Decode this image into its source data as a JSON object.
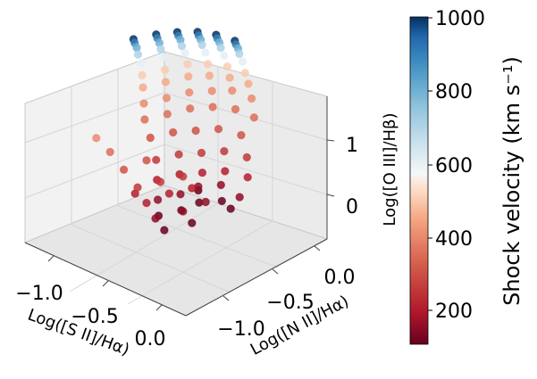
{
  "chart_data": {
    "type": "scatter",
    "projection": "3d",
    "x_axis": {
      "label": "Log([S II]/Hα)",
      "ticks": [
        -1.0,
        -0.5,
        0.0
      ],
      "tick_labels": [
        "−1.0",
        "−0.5",
        "0.0"
      ]
    },
    "y_axis": {
      "label": "Log([N II]/Hα)",
      "ticks": [
        -1.0,
        -0.5,
        0.0
      ],
      "tick_labels": [
        "−1.0",
        "−0.5",
        "0.0"
      ]
    },
    "z_axis": {
      "label": "Log([O III]/Hβ)",
      "ticks": [
        0,
        1
      ],
      "tick_labels": [
        "0",
        "1"
      ]
    },
    "colorbar": {
      "label": "Shock velocity (km s⁻¹)",
      "range": [
        100,
        1000
      ],
      "ticks": [
        200,
        400,
        600,
        800,
        1000
      ],
      "tick_labels": [
        "200",
        "400",
        "600",
        "800",
        "1000"
      ],
      "colormap": "RdBu"
    },
    "series": [
      {
        "name": "100",
        "velocity": 100,
        "points": [
          [
            -0.7,
            -0.55,
            -0.35
          ],
          [
            -0.55,
            -0.45,
            -0.25
          ],
          [
            -0.45,
            -0.35,
            -0.15
          ],
          [
            -0.3,
            -0.25,
            -0.1
          ],
          [
            -0.6,
            -0.6,
            -0.45
          ],
          [
            -0.4,
            -0.5,
            -0.3
          ],
          [
            -0.25,
            -0.2,
            -0.2
          ],
          [
            -0.5,
            -0.3,
            -0.05
          ]
        ]
      },
      {
        "name": "150",
        "velocity": 150,
        "points": [
          [
            -0.75,
            -0.5,
            -0.2
          ],
          [
            -0.6,
            -0.4,
            -0.1
          ],
          [
            -0.5,
            -0.3,
            0.0
          ],
          [
            -0.35,
            -0.2,
            0.05
          ],
          [
            -0.2,
            -0.15,
            -0.05
          ],
          [
            -0.65,
            -0.65,
            -0.3
          ],
          [
            -0.45,
            -0.55,
            -0.15
          ],
          [
            -0.3,
            -0.45,
            0.0
          ]
        ]
      },
      {
        "name": "200",
        "velocity": 200,
        "points": [
          [
            -0.8,
            -0.45,
            0.0
          ],
          [
            -0.65,
            -0.35,
            0.1
          ],
          [
            -0.5,
            -0.25,
            0.15
          ],
          [
            -0.35,
            -0.15,
            0.2
          ],
          [
            -0.2,
            -0.05,
            0.15
          ],
          [
            -0.7,
            -0.7,
            -0.1
          ],
          [
            -0.55,
            -0.6,
            0.05
          ],
          [
            -0.4,
            -0.5,
            0.15
          ],
          [
            -0.9,
            -0.6,
            -0.15
          ]
        ]
      },
      {
        "name": "250",
        "velocity": 250,
        "points": [
          [
            -0.85,
            -0.4,
            0.2
          ],
          [
            -0.7,
            -0.3,
            0.3
          ],
          [
            -0.55,
            -0.2,
            0.35
          ],
          [
            -0.4,
            -0.1,
            0.4
          ],
          [
            -0.25,
            0.0,
            0.35
          ],
          [
            -0.75,
            -0.75,
            0.1
          ],
          [
            -0.6,
            -0.65,
            0.2
          ],
          [
            -0.45,
            -0.55,
            0.3
          ]
        ]
      },
      {
        "name": "300",
        "velocity": 300,
        "points": [
          [
            -0.95,
            -0.35,
            0.4
          ],
          [
            -0.8,
            -0.25,
            0.5
          ],
          [
            -0.65,
            -0.15,
            0.55
          ],
          [
            -0.5,
            -0.05,
            0.6
          ],
          [
            -0.35,
            0.05,
            0.55
          ],
          [
            -0.85,
            -0.8,
            0.3
          ],
          [
            -0.7,
            -0.7,
            0.45
          ]
        ]
      },
      {
        "name": "350",
        "velocity": 350,
        "points": [
          [
            -1.05,
            -0.3,
            0.55
          ],
          [
            -0.9,
            -0.2,
            0.65
          ],
          [
            -0.75,
            -0.1,
            0.75
          ],
          [
            -0.6,
            0.0,
            0.8
          ],
          [
            -0.45,
            0.1,
            0.8
          ],
          [
            -0.3,
            0.15,
            0.75
          ],
          [
            -0.95,
            -0.85,
            0.5
          ]
        ]
      },
      {
        "name": "400",
        "velocity": 400,
        "points": [
          [
            -1.1,
            -0.25,
            0.7
          ],
          [
            -0.95,
            -0.15,
            0.8
          ],
          [
            -0.8,
            -0.05,
            0.9
          ],
          [
            -0.65,
            0.05,
            0.95
          ],
          [
            -0.5,
            0.12,
            1.0
          ],
          [
            -0.35,
            0.18,
            0.95
          ],
          [
            -1.05,
            -0.9,
            0.65
          ]
        ]
      },
      {
        "name": "450",
        "velocity": 450,
        "points": [
          [
            -1.15,
            -0.2,
            0.85
          ],
          [
            -1.0,
            -0.1,
            0.95
          ],
          [
            -0.85,
            0.0,
            1.05
          ],
          [
            -0.7,
            0.08,
            1.1
          ],
          [
            -0.55,
            0.15,
            1.12
          ],
          [
            -0.4,
            0.2,
            1.1
          ]
        ]
      },
      {
        "name": "500",
        "velocity": 500,
        "points": [
          [
            -1.2,
            -0.15,
            0.95
          ],
          [
            -1.05,
            -0.05,
            1.05
          ],
          [
            -0.9,
            0.05,
            1.15
          ],
          [
            -0.75,
            0.12,
            1.2
          ],
          [
            -0.6,
            0.18,
            1.22
          ],
          [
            -0.45,
            0.22,
            1.2
          ]
        ]
      },
      {
        "name": "600",
        "velocity": 600,
        "points": [
          [
            -1.25,
            -0.1,
            1.05
          ],
          [
            -1.1,
            0.0,
            1.15
          ],
          [
            -0.95,
            0.08,
            1.25
          ],
          [
            -0.8,
            0.15,
            1.3
          ],
          [
            -0.65,
            0.2,
            1.32
          ],
          [
            -0.5,
            0.25,
            1.3
          ]
        ]
      },
      {
        "name": "700",
        "velocity": 700,
        "points": [
          [
            -1.3,
            -0.08,
            1.12
          ],
          [
            -1.15,
            0.02,
            1.22
          ],
          [
            -1.0,
            0.1,
            1.3
          ],
          [
            -0.85,
            0.17,
            1.36
          ],
          [
            -0.7,
            0.22,
            1.38
          ],
          [
            -0.55,
            0.27,
            1.36
          ]
        ]
      },
      {
        "name": "800",
        "velocity": 800,
        "points": [
          [
            -1.33,
            -0.06,
            1.18
          ],
          [
            -1.18,
            0.04,
            1.27
          ],
          [
            -1.03,
            0.12,
            1.35
          ],
          [
            -0.88,
            0.19,
            1.4
          ],
          [
            -0.73,
            0.24,
            1.42
          ],
          [
            -0.58,
            0.29,
            1.4
          ]
        ]
      },
      {
        "name": "900",
        "velocity": 900,
        "points": [
          [
            -1.36,
            -0.05,
            1.22
          ],
          [
            -1.21,
            0.05,
            1.31
          ],
          [
            -1.06,
            0.13,
            1.38
          ],
          [
            -0.91,
            0.2,
            1.43
          ],
          [
            -0.76,
            0.25,
            1.45
          ],
          [
            -0.61,
            0.3,
            1.43
          ]
        ]
      },
      {
        "name": "1000",
        "velocity": 1000,
        "points": [
          [
            -1.38,
            -0.04,
            1.25
          ],
          [
            -1.23,
            0.06,
            1.34
          ],
          [
            -1.08,
            0.14,
            1.41
          ],
          [
            -0.93,
            0.21,
            1.46
          ],
          [
            -0.78,
            0.26,
            1.48
          ],
          [
            -0.63,
            0.31,
            1.46
          ]
        ]
      }
    ]
  }
}
